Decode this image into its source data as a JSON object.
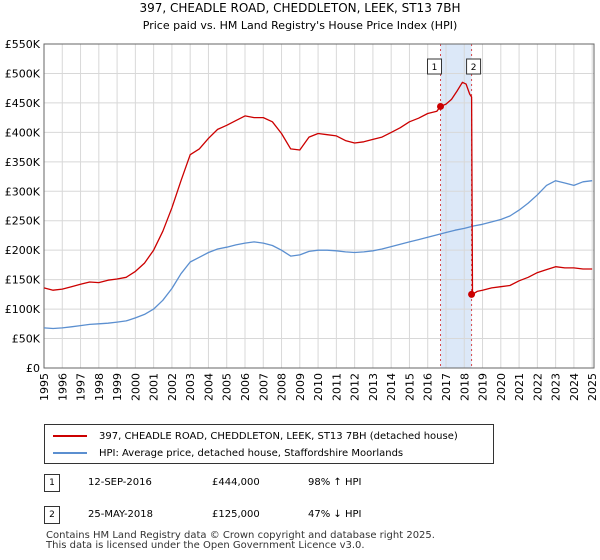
{
  "chart_data": {
    "type": "line",
    "title": "397, CHEADLE ROAD, CHEDDLETON, LEEK, ST13 7BH",
    "subtitle": "Price paid vs. HM Land Registry's House Price Index (HPI)",
    "xlim": [
      1995,
      2025.1
    ],
    "ylim": [
      0,
      550000
    ],
    "y_ticks": [
      0,
      50000,
      100000,
      150000,
      200000,
      250000,
      300000,
      350000,
      400000,
      450000,
      500000,
      550000
    ],
    "y_tick_labels": [
      "£0",
      "£50K",
      "£100K",
      "£150K",
      "£200K",
      "£250K",
      "£300K",
      "£350K",
      "£400K",
      "£450K",
      "£500K",
      "£550K"
    ],
    "x_ticks": [
      1995,
      1996,
      1997,
      1998,
      1999,
      2000,
      2001,
      2002,
      2003,
      2004,
      2005,
      2006,
      2007,
      2008,
      2009,
      2010,
      2011,
      2012,
      2013,
      2014,
      2015,
      2016,
      2017,
      2018,
      2019,
      2020,
      2021,
      2022,
      2023,
      2024,
      2025
    ],
    "x_tick_labels": [
      "1995",
      "1996",
      "1997",
      "1998",
      "1999",
      "2000",
      "2001",
      "2002",
      "2003",
      "2004",
      "2005",
      "2006",
      "2007",
      "2008",
      "2009",
      "2010",
      "2011",
      "2012",
      "2013",
      "2014",
      "2015",
      "2016",
      "2017",
      "2018",
      "2019",
      "2020",
      "2021",
      "2022",
      "2023",
      "2024",
      "2025"
    ],
    "grid": true,
    "shaded_period": [
      2016.7,
      2018.4
    ],
    "series": [
      {
        "name": "397, CHEADLE ROAD, CHEDDLETON, LEEK, ST13 7BH (detached house)",
        "color": "#cc0000",
        "x": [
          1995,
          1995.5,
          1996,
          1996.5,
          1997,
          1997.5,
          1998,
          1998.5,
          1999,
          1999.5,
          2000,
          2000.5,
          2001,
          2001.5,
          2002,
          2002.5,
          2003,
          2003.5,
          2004,
          2004.5,
          2005,
          2005.5,
          2006,
          2006.5,
          2007,
          2007.5,
          2008,
          2008.5,
          2009,
          2009.5,
          2010,
          2010.5,
          2011,
          2011.5,
          2012,
          2012.5,
          2013,
          2013.5,
          2014,
          2014.5,
          2015,
          2015.5,
          2016,
          2016.5,
          2016.7,
          2017,
          2017.3,
          2017.6,
          2017.9,
          2018.1,
          2018.3,
          2018.4,
          2018.45,
          2018.7,
          2019,
          2019.5,
          2020,
          2020.5,
          2021,
          2021.5,
          2022,
          2022.5,
          2023,
          2023.5,
          2024,
          2024.5,
          2025
        ],
        "values": [
          136000,
          132000,
          134000,
          138000,
          142000,
          146000,
          145000,
          149000,
          151000,
          154000,
          164000,
          178000,
          200000,
          232000,
          272000,
          318000,
          362000,
          372000,
          390000,
          405000,
          412000,
          420000,
          428000,
          425000,
          425000,
          418000,
          398000,
          372000,
          370000,
          392000,
          398000,
          396000,
          394000,
          386000,
          382000,
          384000,
          388000,
          392000,
          400000,
          408000,
          418000,
          424000,
          432000,
          436000,
          444000,
          448000,
          456000,
          470000,
          485000,
          482000,
          465000,
          460000,
          125000,
          130000,
          132000,
          136000,
          138000,
          140000,
          148000,
          154000,
          162000,
          167000,
          172000,
          170000,
          170000,
          168000,
          168000
        ]
      },
      {
        "name": "HPI: Average price, detached house, Staffordshire Moorlands",
        "color": "#5b8fd0",
        "x": [
          1995,
          1995.5,
          1996,
          1996.5,
          1997,
          1997.5,
          1998,
          1998.5,
          1999,
          1999.5,
          2000,
          2000.5,
          2001,
          2001.5,
          2002,
          2002.5,
          2003,
          2003.5,
          2004,
          2004.5,
          2005,
          2005.5,
          2006,
          2006.5,
          2007,
          2007.5,
          2008,
          2008.5,
          2009,
          2009.5,
          2010,
          2010.5,
          2011,
          2011.5,
          2012,
          2012.5,
          2013,
          2013.5,
          2014,
          2014.5,
          2015,
          2015.5,
          2016,
          2016.5,
          2017,
          2017.5,
          2018,
          2018.5,
          2019,
          2019.5,
          2020,
          2020.5,
          2021,
          2021.5,
          2022,
          2022.5,
          2023,
          2023.5,
          2024,
          2024.5,
          2025
        ],
        "values": [
          68000,
          67000,
          68000,
          70000,
          72000,
          74000,
          75000,
          76000,
          78000,
          80000,
          85000,
          91000,
          100000,
          115000,
          135000,
          160000,
          180000,
          188000,
          196000,
          202000,
          205000,
          209000,
          212000,
          214000,
          212000,
          208000,
          200000,
          190000,
          192000,
          198000,
          200000,
          200000,
          199000,
          197000,
          196000,
          197000,
          199000,
          202000,
          206000,
          210000,
          214000,
          218000,
          222000,
          226000,
          230000,
          234000,
          237000,
          241000,
          244000,
          248000,
          252000,
          258000,
          268000,
          280000,
          294000,
          310000,
          318000,
          314000,
          310000,
          316000,
          318000
        ]
      }
    ],
    "sale_points": [
      {
        "label": "1",
        "x": 2016.7,
        "value": 444000
      },
      {
        "label": "2",
        "x": 2018.4,
        "value": 125000
      }
    ]
  },
  "legend": {
    "items": [
      {
        "label": "397, CHEADLE ROAD, CHEDDLETON, LEEK, ST13 7BH (detached house)",
        "color": "#cc0000"
      },
      {
        "label": "HPI: Average price, detached house, Staffordshire Moorlands",
        "color": "#5b8fd0"
      }
    ]
  },
  "transactions": [
    {
      "num": "1",
      "date": "12-SEP-2016",
      "price": "£444,000",
      "hpi": "98% ↑ HPI"
    },
    {
      "num": "2",
      "date": "25-MAY-2018",
      "price": "£125,000",
      "hpi": "47% ↓ HPI"
    }
  ],
  "footer": {
    "line1": "Contains HM Land Registry data © Crown copyright and database right 2025.",
    "line2": "This data is licensed under the Open Government Licence v3.0."
  }
}
